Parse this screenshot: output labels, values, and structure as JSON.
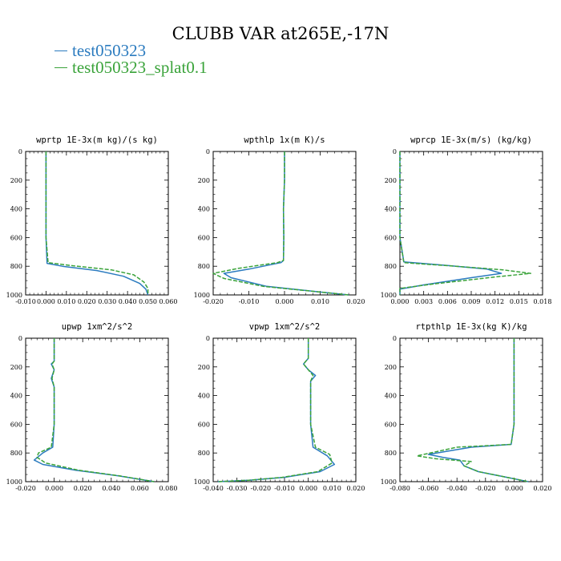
{
  "figure_title": "CLUBB VAR at265E,-17N",
  "legend": [
    {
      "label": "test050323",
      "color": "#2b7bbf",
      "dash": "solid"
    },
    {
      "label": "test050323_splat0.1",
      "color": "#3aa33a",
      "dash": "dashed"
    }
  ],
  "chart_data": [
    {
      "type": "line",
      "title": "wprtp  1E-3x(m kg)/(s kg)",
      "xlim": [
        -0.01,
        0.06
      ],
      "xticks": [
        "-0.010",
        "0.000",
        "0.010",
        "0.020",
        "0.030",
        "0.040",
        "0.050",
        "0.060"
      ],
      "ylim": [
        0,
        1000
      ],
      "yticks": [
        "0",
        "200",
        "400",
        "600",
        "800",
        "1000"
      ],
      "y_inverted": true,
      "series": [
        {
          "name": "test050323",
          "x": [
            0.0,
            0.0,
            0.0,
            0.0,
            0.0005,
            0.008,
            0.025,
            0.038,
            0.046,
            0.049,
            0.05
          ],
          "y": [
            0,
            200,
            400,
            600,
            780,
            800,
            830,
            870,
            920,
            960,
            1000
          ]
        },
        {
          "name": "test050323_splat0.1",
          "x": [
            0.0,
            0.0,
            0.0,
            0.0,
            0.001,
            0.012,
            0.032,
            0.043,
            0.048,
            0.05,
            0.05
          ],
          "y": [
            0,
            200,
            400,
            600,
            775,
            795,
            825,
            860,
            910,
            955,
            1000
          ]
        }
      ]
    },
    {
      "type": "line",
      "title": "wpthlp  1x(m K)/s",
      "xlim": [
        -0.02,
        0.02
      ],
      "xticks": [
        "-0.020",
        "-0.010",
        "0.000",
        "0.010",
        "0.020"
      ],
      "ylim": [
        0,
        1000
      ],
      "yticks": [
        "0",
        "200",
        "400",
        "600",
        "800",
        "1000"
      ],
      "y_inverted": true,
      "series": [
        {
          "name": "test050323",
          "x": [
            0.0,
            0.0,
            -0.0003,
            -0.0002,
            -0.0003,
            -0.001,
            -0.01,
            -0.017,
            -0.015,
            -0.005,
            0.01,
            0.018
          ],
          "y": [
            0,
            200,
            400,
            600,
            760,
            775,
            820,
            850,
            880,
            940,
            980,
            1000
          ]
        },
        {
          "name": "test050323_splat0.1",
          "x": [
            0.0,
            0.0,
            -0.0003,
            -0.0002,
            -0.0003,
            -0.002,
            -0.013,
            -0.02,
            -0.017,
            -0.006,
            0.01,
            0.018
          ],
          "y": [
            0,
            200,
            400,
            600,
            760,
            775,
            815,
            850,
            885,
            940,
            980,
            1000
          ]
        }
      ]
    },
    {
      "type": "line",
      "title": "wprcp  1E-3x(m/s) (kg/kg)",
      "xlim": [
        0.0,
        0.018
      ],
      "xticks": [
        "0.000",
        "0.003",
        "0.006",
        "0.009",
        "0.012",
        "0.015",
        "0.018"
      ],
      "ylim": [
        0,
        1000
      ],
      "yticks": [
        "0",
        "200",
        "400",
        "600",
        "800",
        "1000"
      ],
      "y_inverted": true,
      "series": [
        {
          "name": "test050323",
          "x": [
            0.0,
            0.0,
            0.0,
            0.0,
            0.0005,
            0.006,
            0.011,
            0.0128,
            0.009,
            0.003,
            0.0,
            0.0
          ],
          "y": [
            0,
            200,
            400,
            600,
            770,
            795,
            820,
            850,
            880,
            930,
            960,
            1000
          ]
        },
        {
          "name": "test050323_splat0.1",
          "x": [
            0.0,
            0.0,
            0.0,
            0.0,
            0.0005,
            0.007,
            0.013,
            0.0165,
            0.012,
            0.004,
            0.0,
            0.0
          ],
          "y": [
            0,
            200,
            400,
            600,
            775,
            800,
            825,
            850,
            875,
            925,
            955,
            1000
          ]
        }
      ]
    },
    {
      "type": "line",
      "title": "upwp  1xm^2/s^2",
      "xlim": [
        -0.02,
        0.08
      ],
      "xticks": [
        "-0.020",
        "0.000",
        "0.020",
        "0.040",
        "0.060",
        "0.080"
      ],
      "ylim": [
        0,
        1000
      ],
      "yticks": [
        "0",
        "200",
        "400",
        "600",
        "800",
        "1000"
      ],
      "y_inverted": true,
      "series": [
        {
          "name": "test050323",
          "x": [
            0.0,
            0.0,
            -0.002,
            0.0,
            -0.002,
            0.0,
            0.0,
            -0.001,
            -0.008,
            -0.014,
            -0.008,
            0.015,
            0.045,
            0.07
          ],
          "y": [
            0,
            160,
            180,
            220,
            280,
            340,
            600,
            760,
            800,
            850,
            880,
            920,
            960,
            1000
          ]
        },
        {
          "name": "test050323_splat0.1",
          "x": [
            0.0,
            0.0,
            -0.0015,
            0.0,
            -0.0015,
            0.0,
            0.0,
            -0.002,
            -0.011,
            -0.012,
            -0.006,
            0.017,
            0.046,
            0.07
          ],
          "y": [
            0,
            160,
            180,
            220,
            280,
            340,
            600,
            760,
            800,
            830,
            870,
            920,
            960,
            1000
          ]
        }
      ]
    },
    {
      "type": "line",
      "title": "vpwp  1xm^2/s^2",
      "xlim": [
        -0.04,
        0.02
      ],
      "xticks": [
        "-0.040",
        "-0.030",
        "-0.020",
        "-0.010",
        "0.000",
        "0.010",
        "0.020"
      ],
      "ylim": [
        0,
        1000
      ],
      "yticks": [
        "0",
        "200",
        "400",
        "600",
        "800",
        "1000"
      ],
      "y_inverted": true,
      "series": [
        {
          "name": "test050323",
          "x": [
            0.0,
            0.0,
            -0.002,
            0.0,
            0.003,
            0.001,
            0.001,
            0.001,
            0.002,
            0.008,
            0.011,
            0.005,
            -0.01,
            -0.025,
            -0.038
          ],
          "y": [
            0,
            140,
            180,
            220,
            260,
            300,
            350,
            600,
            760,
            820,
            880,
            930,
            970,
            990,
            1000
          ]
        },
        {
          "name": "test050323_splat0.1",
          "x": [
            0.0,
            0.0,
            -0.002,
            0.0,
            0.002,
            0.001,
            0.001,
            0.001,
            0.003,
            0.009,
            0.01,
            0.004,
            -0.011,
            -0.025,
            -0.038
          ],
          "y": [
            0,
            140,
            180,
            220,
            260,
            300,
            350,
            600,
            760,
            810,
            870,
            930,
            970,
            990,
            1000
          ]
        }
      ]
    },
    {
      "type": "line",
      "title": "rtpthlp  1E-3x(kg K)/kg",
      "xlim": [
        -0.08,
        0.02
      ],
      "xticks": [
        "-0.080",
        "-0.060",
        "-0.040",
        "-0.020",
        "0.000",
        "0.020"
      ],
      "ylim": [
        0,
        1000
      ],
      "yticks": [
        "0",
        "200",
        "400",
        "600",
        "800",
        "1000"
      ],
      "y_inverted": true,
      "series": [
        {
          "name": "test050323",
          "x": [
            0.0,
            0.0,
            0.0,
            0.0,
            -0.002,
            -0.03,
            -0.06,
            -0.05,
            -0.038,
            -0.035,
            -0.025,
            -0.005,
            0.01
          ],
          "y": [
            0,
            200,
            400,
            600,
            740,
            760,
            810,
            830,
            850,
            890,
            930,
            970,
            1000
          ]
        },
        {
          "name": "test050323_splat0.1",
          "x": [
            0.0,
            0.0,
            0.0,
            0.0,
            -0.002,
            -0.04,
            -0.068,
            -0.055,
            -0.03,
            -0.035,
            -0.025,
            -0.005,
            0.01
          ],
          "y": [
            0,
            200,
            400,
            600,
            740,
            760,
            820,
            840,
            860,
            890,
            930,
            970,
            1000
          ]
        }
      ]
    }
  ]
}
